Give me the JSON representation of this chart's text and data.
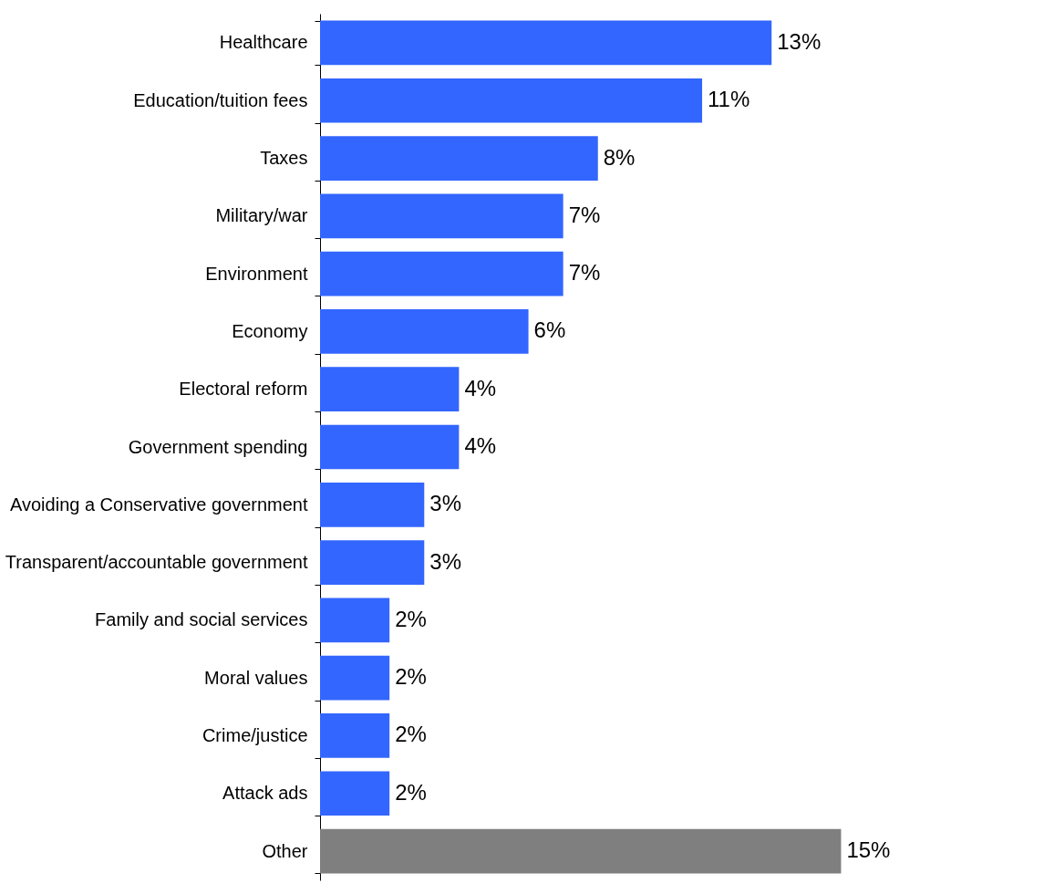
{
  "chart_data": {
    "type": "bar",
    "orientation": "horizontal",
    "categories": [
      "Healthcare",
      "Education/tuition fees",
      "Taxes",
      "Military/war",
      "Environment",
      "Economy",
      "Electoral reform",
      "Government spending",
      "Avoiding a Conservative government",
      "Transparent/accountable government",
      "Family and social services",
      "Moral values",
      "Crime/justice",
      "Attack ads",
      "Other"
    ],
    "values": [
      13,
      11,
      8,
      7,
      7,
      6,
      4,
      4,
      3,
      3,
      2,
      2,
      2,
      2,
      15
    ],
    "value_labels": [
      "13%",
      "11%",
      "8%",
      "7%",
      "7%",
      "6%",
      "4%",
      "4%",
      "3%",
      "3%",
      "2%",
      "2%",
      "2%",
      "2%",
      "15%"
    ],
    "colors": [
      "#3366ff",
      "#3366ff",
      "#3366ff",
      "#3366ff",
      "#3366ff",
      "#3366ff",
      "#3366ff",
      "#3366ff",
      "#3366ff",
      "#3366ff",
      "#3366ff",
      "#3366ff",
      "#3366ff",
      "#3366ff",
      "#7f7f7f"
    ],
    "tick_labels": "y"
  }
}
